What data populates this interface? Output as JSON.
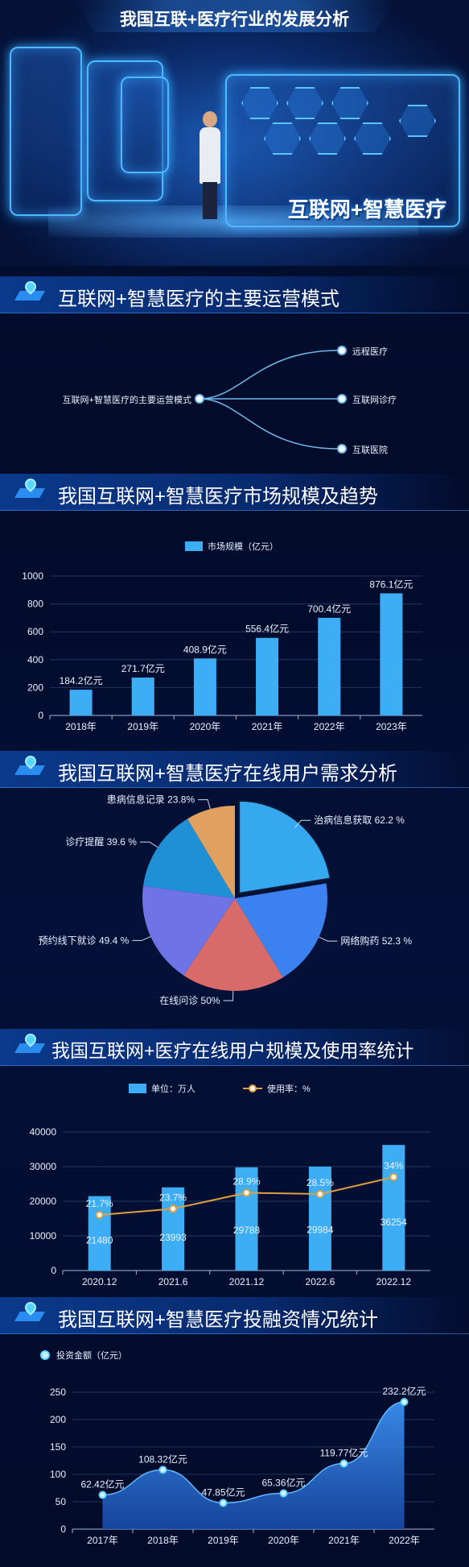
{
  "header": {
    "title": "我国互联+医疗行业的发展分析",
    "slogan": "互联网+智慧医疗"
  },
  "colors": {
    "bar": "#3daef5",
    "line": "#e0a040",
    "accent": "#4fb8ff",
    "bg": "#020c2a"
  },
  "sections": [
    {
      "title": "互联网+智慧医疗的主要运营模式"
    },
    {
      "title": "我国互联网+智慧医疗市场规模及趋势"
    },
    {
      "title": "我国互联网+智慧医疗在线用户需求分析"
    },
    {
      "title": "我国互联网+医疗在线用户规模及使用率统计"
    },
    {
      "title": "我国互联网+智慧医疗投融资情况统计"
    }
  ],
  "mind_map": {
    "root": "互联网+智慧医疗的主要运营模式",
    "branches": [
      "远程医疗",
      "互联网诊疗",
      "互联医院"
    ]
  },
  "chart_data": [
    {
      "type": "bar",
      "legend": [
        "市场规模（亿元）"
      ],
      "categories": [
        "2018年",
        "2019年",
        "2020年",
        "2021年",
        "2022年",
        "2023年"
      ],
      "values": [
        184.2,
        271.7,
        408.9,
        556.4,
        700.4,
        876.1
      ],
      "value_labels": [
        "184.2亿元",
        "271.7亿元",
        "408.9亿元",
        "556.4亿元",
        "700.4亿元",
        "876.1亿元"
      ],
      "ylim": [
        0,
        1000
      ],
      "yticks": [
        "0",
        "200",
        "400",
        "600",
        "800",
        "1000"
      ],
      "legend_position": "top-center",
      "grid": true
    },
    {
      "type": "pie",
      "slices": [
        {
          "label": "治病信息获取 62.2 %",
          "value": 62.2,
          "color": "#36a8f0",
          "exploded": true
        },
        {
          "label": "网络购药 52.3 %",
          "value": 52.3,
          "color": "#3b82f0"
        },
        {
          "label": "在线问诊 50%",
          "value": 50,
          "color": "#d96a6a"
        },
        {
          "label": "预约线下就诊 49.4 %",
          "value": 49.4,
          "color": "#6e74e6"
        },
        {
          "label": "诊疗提醒 39.6 %",
          "value": 39.6,
          "color": "#1f8fd6"
        },
        {
          "label": "患病信息记录 23.8%",
          "value": 23.8,
          "color": "#e0a060"
        }
      ]
    },
    {
      "type": "bar",
      "legend": [
        "单位：万人",
        "使用率：%"
      ],
      "categories": [
        "2020.12",
        "2021.6",
        "2021.12",
        "2022.6",
        "2022.12"
      ],
      "series": [
        {
          "name": "单位：万人",
          "type": "bar",
          "values": [
            21480,
            23993,
            29788,
            29984,
            36254
          ]
        },
        {
          "name": "使用率：%",
          "type": "line",
          "values": [
            21.7,
            23.7,
            28.9,
            28.5,
            34
          ],
          "value_labels": [
            "21.7%",
            "23.7%",
            "28.9%",
            "28.5%",
            "34%"
          ]
        }
      ],
      "ylim": [
        0,
        40000
      ],
      "yticks": [
        "0",
        "10000",
        "20000",
        "30000",
        "40000"
      ],
      "legend_position": "top-center",
      "grid": true
    },
    {
      "type": "area",
      "legend": [
        "投资金额（亿元）"
      ],
      "categories": [
        "2017年",
        "2018年",
        "2019年",
        "2020年",
        "2021年",
        "2022年"
      ],
      "values": [
        62.42,
        108.32,
        47.85,
        65.36,
        119.77,
        232.2
      ],
      "value_labels": [
        "62.42亿元",
        "108.32亿元",
        "47.85亿元",
        "65.36亿元",
        "119.77亿元",
        "232.2亿元"
      ],
      "ylim": [
        0,
        250
      ],
      "yticks": [
        "0",
        "50",
        "100",
        "150",
        "200",
        "250"
      ],
      "legend_position": "top-left",
      "grid": true
    }
  ]
}
